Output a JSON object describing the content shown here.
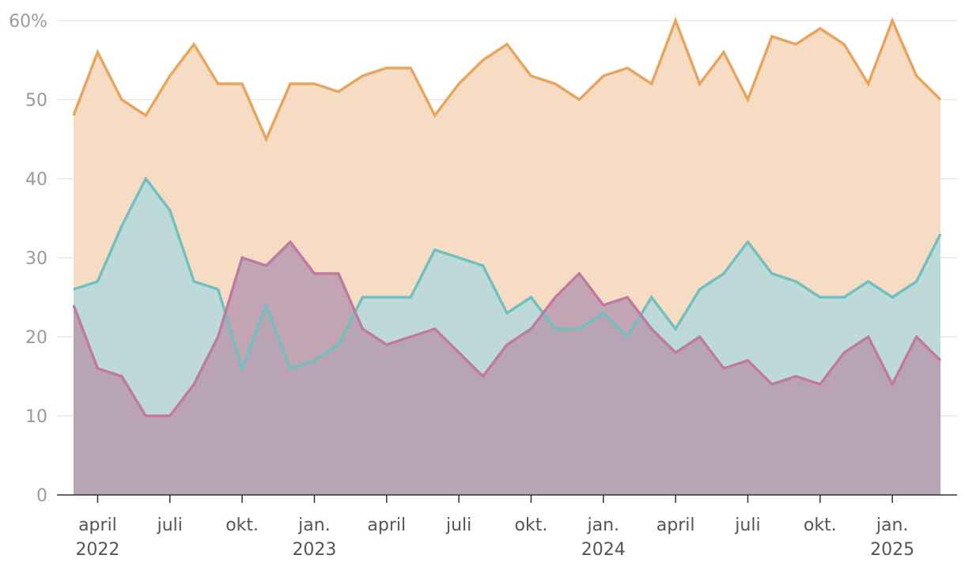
{
  "chart_data": {
    "type": "area",
    "title": "",
    "xlabel": "",
    "ylabel": "",
    "y_unit_label": "60%",
    "ylim": [
      0,
      60
    ],
    "grid": true,
    "legend": "none",
    "x": [
      "2022-03",
      "2022-04",
      "2022-05",
      "2022-06",
      "2022-07",
      "2022-08",
      "2022-09",
      "2022-10",
      "2022-11",
      "2022-12",
      "2023-01",
      "2023-02",
      "2023-03",
      "2023-04",
      "2023-05",
      "2023-06",
      "2023-07",
      "2023-08",
      "2023-09",
      "2023-10",
      "2023-11",
      "2023-12",
      "2024-01",
      "2024-02",
      "2024-03",
      "2024-04",
      "2024-05",
      "2024-06",
      "2024-07",
      "2024-08",
      "2024-09",
      "2024-10",
      "2024-11",
      "2024-12",
      "2025-01",
      "2025-02",
      "2025-03"
    ],
    "y_ticks": [
      {
        "value": 0,
        "label": "0"
      },
      {
        "value": 10,
        "label": "10"
      },
      {
        "value": 20,
        "label": "20"
      },
      {
        "value": 30,
        "label": "30"
      },
      {
        "value": 40,
        "label": "40"
      },
      {
        "value": 50,
        "label": "50"
      },
      {
        "value": 60,
        "label": "60%"
      }
    ],
    "x_ticks": [
      {
        "at": "2022-04",
        "label": "april",
        "year": "2022"
      },
      {
        "at": "2022-07",
        "label": "juli",
        "year": ""
      },
      {
        "at": "2022-10",
        "label": "okt.",
        "year": ""
      },
      {
        "at": "2023-01",
        "label": "jan.",
        "year": "2023"
      },
      {
        "at": "2023-04",
        "label": "april",
        "year": ""
      },
      {
        "at": "2023-07",
        "label": "juli",
        "year": ""
      },
      {
        "at": "2023-10",
        "label": "okt.",
        "year": ""
      },
      {
        "at": "2024-01",
        "label": "jan.",
        "year": "2024"
      },
      {
        "at": "2024-04",
        "label": "april",
        "year": ""
      },
      {
        "at": "2024-07",
        "label": "juli",
        "year": ""
      },
      {
        "at": "2024-10",
        "label": "okt.",
        "year": ""
      },
      {
        "at": "2025-01",
        "label": "jan.",
        "year": "2025"
      }
    ],
    "series": [
      {
        "color": "#e8a55d",
        "fill": "#f6dcc2",
        "values": [
          48,
          56,
          50,
          48,
          53,
          57,
          52,
          52,
          45,
          52,
          52,
          51,
          53,
          54,
          54,
          48,
          52,
          55,
          57,
          53,
          52,
          50,
          53,
          54,
          52,
          60,
          52,
          56,
          50,
          58,
          57,
          59,
          57,
          52,
          60,
          53,
          50
        ]
      },
      {
        "color": "#72bfc0",
        "fill": "#b3d9dc",
        "values": [
          26,
          27,
          34,
          40,
          36,
          27,
          26,
          16,
          24,
          16,
          17,
          19,
          25,
          25,
          25,
          31,
          30,
          29,
          23,
          25,
          21,
          21,
          23,
          20,
          25,
          21,
          26,
          28,
          32,
          28,
          27,
          25,
          25,
          27,
          25,
          27,
          33
        ]
      },
      {
        "color": "#c07aa2",
        "fill": "#b99ab0",
        "values": [
          24,
          16,
          15,
          10,
          10,
          14,
          20,
          30,
          29,
          32,
          28,
          28,
          21,
          19,
          20,
          21,
          18,
          15,
          19,
          21,
          25,
          28,
          24,
          25,
          21,
          18,
          20,
          16,
          17,
          14,
          15,
          14,
          18,
          20,
          14,
          20,
          17
        ]
      }
    ]
  }
}
